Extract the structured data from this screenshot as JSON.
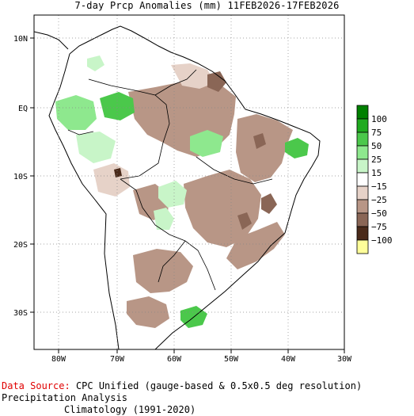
{
  "title": "7-day Prcp Anomalies (mm) 11FEB2026-17FEB2026",
  "lon_labels": [
    "80W",
    "70W",
    "60W",
    "50W",
    "40W",
    "30W"
  ],
  "lat_labels": [
    "10N",
    "EQ",
    "10S",
    "20S",
    "30S"
  ],
  "legend": {
    "labels": [
      "100",
      "75",
      "50",
      "25",
      "15",
      "−15",
      "−25",
      "−50",
      "−75",
      "−100"
    ],
    "colors": [
      "#008000",
      "#1faa1f",
      "#4bc84b",
      "#8ee88e",
      "#c8f5c8",
      "#ffffff",
      "#e6d2c8",
      "#b89686",
      "#8a6656",
      "#4a2a1a",
      "#ffff9a"
    ]
  },
  "footer": {
    "source_label": "Data Source:",
    "source_text": "CPC Unified (gauge-based & 0.5x0.5 deg resolution) Precipitation Analysis",
    "climatology": "Climatology (1991-2020)"
  },
  "colors": {
    "wet_strong": "#1faa1f",
    "wet_moderate": "#4bc84b",
    "wet_light": "#8ee88e",
    "wet_faint": "#c8f5c8",
    "dry_faint": "#e6d2c8",
    "dry_light": "#b89686",
    "dry_moderate": "#8a6656",
    "dry_strong": "#4a2a1a"
  }
}
